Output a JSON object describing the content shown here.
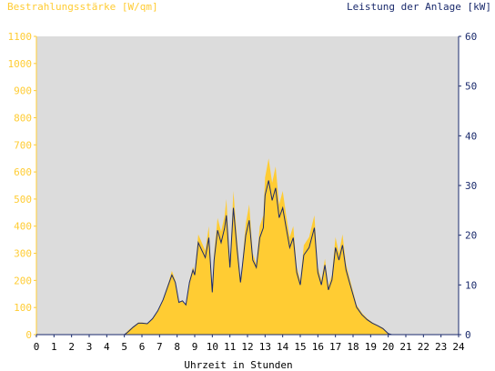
{
  "chart_data": {
    "type": "area",
    "left_axis_title": "Bestrahlungsstärke [W/qm]",
    "right_axis_title": "Leistung der Anlage [kW]",
    "xlabel": "Uhrzeit in Stunden",
    "x_ticks": [
      "0",
      "1",
      "2",
      "3",
      "4",
      "5",
      "6",
      "7",
      "8",
      "9",
      "10",
      "11",
      "12",
      "13",
      "14",
      "15",
      "16",
      "17",
      "18",
      "19",
      "20",
      "21",
      "22",
      "23",
      "24"
    ],
    "xlim": [
      0,
      24
    ],
    "ylim_left": [
      0,
      1100
    ],
    "ylim_right": [
      0,
      60
    ],
    "left_ticks": [
      "0",
      "100",
      "200",
      "300",
      "400",
      "500",
      "600",
      "700",
      "800",
      "900",
      "1000",
      "1100"
    ],
    "right_ticks": [
      "0",
      "10",
      "20",
      "30",
      "40",
      "50",
      "60"
    ],
    "grid": false,
    "series": [
      {
        "name": "Bestrahlungsstärke [W/qm]",
        "axis": "left",
        "color": "#ffcc33",
        "x": [
          0,
          5,
          5.2,
          5.5,
          5.8,
          6,
          6.3,
          6.6,
          6.9,
          7.2,
          7.5,
          7.7,
          7.9,
          8.1,
          8.3,
          8.5,
          8.7,
          8.9,
          9.0,
          9.2,
          9.4,
          9.6,
          9.8,
          10.0,
          10.1,
          10.3,
          10.5,
          10.7,
          10.8,
          11.0,
          11.2,
          11.4,
          11.6,
          11.7,
          11.9,
          12.1,
          12.3,
          12.5,
          12.7,
          12.9,
          13.0,
          13.2,
          13.4,
          13.6,
          13.8,
          14.0,
          14.2,
          14.4,
          14.6,
          14.8,
          15.0,
          15.2,
          15.5,
          15.8,
          16.0,
          16.2,
          16.4,
          16.6,
          16.8,
          17.0,
          17.2,
          17.4,
          17.6,
          17.8,
          18.0,
          18.2,
          18.5,
          18.8,
          19.1,
          19.4,
          19.7,
          20.0,
          20.2,
          20.5,
          24
        ],
        "values": [
          0,
          0,
          15,
          30,
          45,
          45,
          42,
          60,
          90,
          130,
          190,
          235,
          200,
          120,
          125,
          110,
          200,
          250,
          230,
          370,
          340,
          310,
          400,
          160,
          300,
          430,
          380,
          440,
          500,
          260,
          530,
          360,
          200,
          260,
          410,
          480,
          300,
          260,
          400,
          440,
          580,
          650,
          560,
          620,
          480,
          530,
          440,
          360,
          400,
          250,
          200,
          330,
          360,
          440,
          250,
          200,
          280,
          180,
          220,
          360,
          300,
          370,
          260,
          210,
          160,
          110,
          80,
          60,
          45,
          35,
          25,
          5,
          0,
          0,
          0
        ]
      },
      {
        "name": "Leistung der Anlage [kW]",
        "axis": "right",
        "color": "#1a2a6c",
        "x": [
          0,
          5,
          5.2,
          5.5,
          5.8,
          6,
          6.3,
          6.6,
          6.9,
          7.2,
          7.5,
          7.7,
          7.9,
          8.1,
          8.3,
          8.5,
          8.7,
          8.9,
          9.0,
          9.2,
          9.4,
          9.6,
          9.8,
          10.0,
          10.1,
          10.3,
          10.5,
          10.7,
          10.8,
          11.0,
          11.2,
          11.4,
          11.6,
          11.7,
          11.9,
          12.1,
          12.3,
          12.5,
          12.7,
          12.9,
          13.0,
          13.2,
          13.4,
          13.6,
          13.8,
          14.0,
          14.2,
          14.4,
          14.6,
          14.8,
          15.0,
          15.2,
          15.5,
          15.8,
          16.0,
          16.2,
          16.4,
          16.6,
          16.8,
          17.0,
          17.2,
          17.4,
          17.6,
          17.8,
          18.0,
          18.2,
          18.5,
          18.8,
          19.1,
          19.4,
          19.7,
          20.0,
          20.2,
          20.5,
          24
        ],
        "values": [
          0,
          0,
          0.5,
          1.5,
          2.3,
          2.3,
          2.2,
          3.2,
          4.8,
          7.0,
          10.0,
          12.0,
          10.5,
          6.5,
          6.8,
          6.0,
          10.5,
          13.0,
          12.0,
          18.5,
          17.0,
          15.5,
          19.5,
          8.5,
          15.0,
          21.0,
          18.5,
          21.5,
          24.0,
          13.5,
          25.5,
          17.5,
          10.5,
          13.5,
          20.0,
          23.0,
          15.0,
          13.5,
          19.5,
          21.5,
          28.0,
          31.0,
          27.0,
          29.5,
          23.5,
          25.5,
          21.5,
          17.5,
          19.5,
          12.5,
          10.0,
          16.0,
          17.5,
          21.5,
          12.5,
          10.0,
          14.0,
          9.0,
          11.0,
          17.5,
          15.0,
          18.0,
          13.0,
          10.5,
          8.0,
          5.5,
          4.0,
          3.0,
          2.3,
          1.8,
          1.2,
          0.2,
          0,
          0,
          0
        ]
      }
    ]
  },
  "colors": {
    "plot_background": "#dcdcdc",
    "left_axis": "#ffcc33",
    "right_axis": "#1a2a6c",
    "left_text": "#ffcc33",
    "right_text": "#1a2a6c",
    "bottom_text": "#000000"
  }
}
